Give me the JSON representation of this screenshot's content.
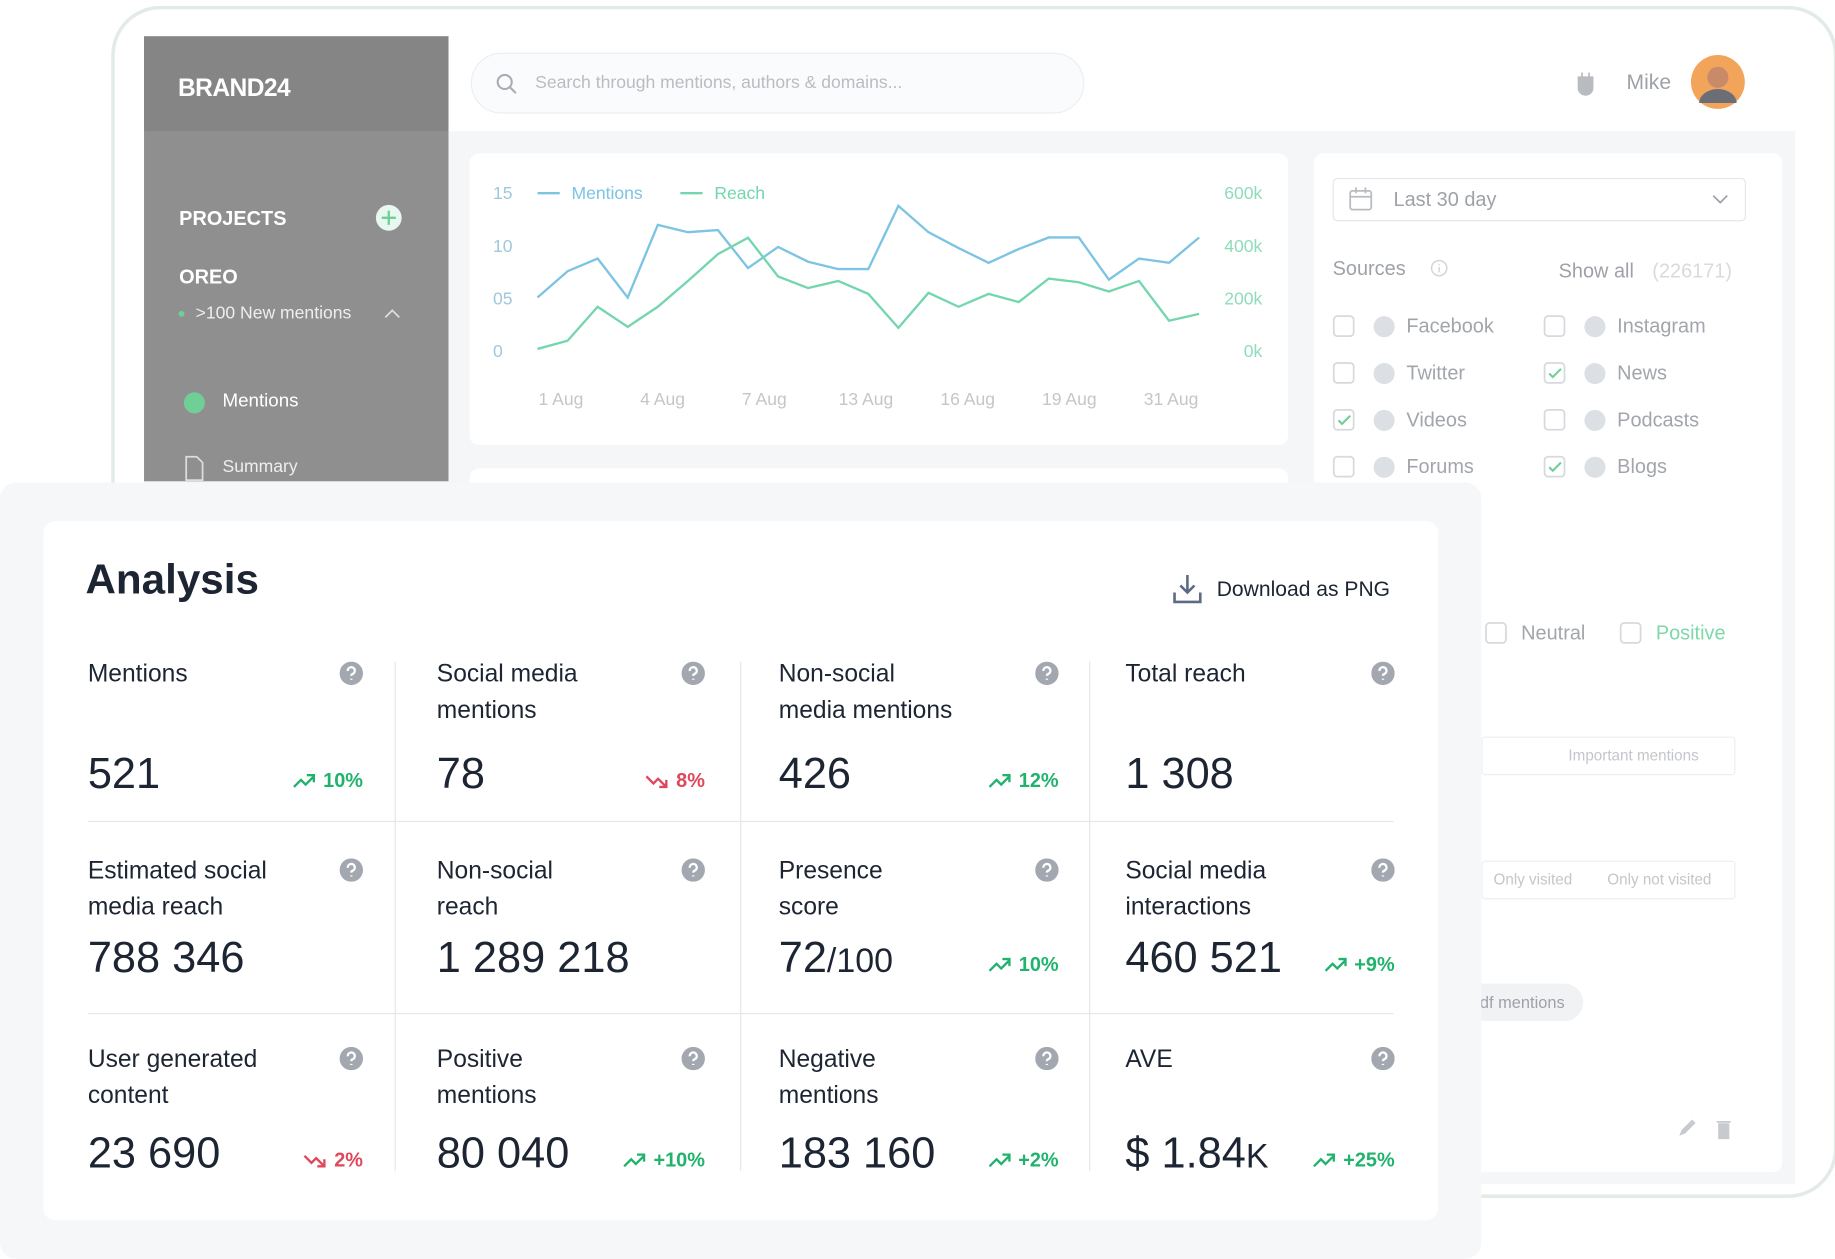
{
  "sidebar": {
    "brand": "BRAND24",
    "projects_heading": "PROJECTS",
    "project": {
      "name": "OREO",
      "status": ">100 New mentions"
    },
    "nav": [
      "Mentions",
      "Summary"
    ]
  },
  "header": {
    "search_placeholder": "Search through mentions, authors & domains...",
    "user": "Mike"
  },
  "chart": {
    "type": "line",
    "series": [
      {
        "name": "Mentions",
        "color": "#7cc4e2",
        "axis": "y",
        "values": [
          5.1,
          7.6,
          8.8,
          5.1,
          12,
          11.3,
          11.5,
          7.9,
          9.9,
          8.5,
          7.8,
          7.8,
          13.8,
          11.3,
          9.8,
          8.4,
          9.7,
          10.8,
          10.8,
          6.8,
          8.8,
          8.4,
          10.8
        ]
      },
      {
        "name": "Reach",
        "color": "#74d6ad",
        "axis": "y2",
        "values": [
          9000,
          40000,
          169000,
          93000,
          169000,
          267000,
          369000,
          431000,
          284000,
          240000,
          267000,
          218000,
          89000,
          222000,
          169000,
          218000,
          187000,
          276000,
          262000,
          227000,
          267000,
          116000,
          142000
        ]
      }
    ],
    "x_tick_labels": [
      "1 Aug",
      "4 Aug",
      "7 Aug",
      "13 Aug",
      "16 Aug",
      "19 Aug",
      "31 Aug"
    ],
    "ylim": [
      0,
      15
    ],
    "yticks": [
      0,
      {
        "value": 5,
        "label": "05"
      },
      10,
      15
    ],
    "y2lim": [
      0,
      600000
    ],
    "y2ticks": [
      {
        "value": 0,
        "label": "0k"
      },
      {
        "value": 200000,
        "label": "200k"
      },
      {
        "value": 400000,
        "label": "400k"
      },
      {
        "value": 600000,
        "label": "600k"
      }
    ]
  },
  "filters": {
    "date_range": "Last 30 day",
    "sources_heading": "Sources",
    "show_all": "Show all",
    "total": "(226171)",
    "sources": [
      {
        "name": "Facebook",
        "checked": false
      },
      {
        "name": "Instagram",
        "checked": false
      },
      {
        "name": "Twitter",
        "checked": false
      },
      {
        "name": "News",
        "checked": true
      },
      {
        "name": "Videos",
        "checked": true
      },
      {
        "name": "Podcasts",
        "checked": false
      },
      {
        "name": "Forums",
        "checked": false
      },
      {
        "name": "Blogs",
        "checked": true
      }
    ],
    "sentiment": [
      {
        "name": "Neutral",
        "checked": false
      },
      {
        "name": "Positive",
        "checked": false
      }
    ],
    "important": "Important mentions",
    "visited": [
      "Only visited",
      "Only not visited"
    ],
    "pdf": "pdf mentions"
  },
  "analysis": {
    "title": "Analysis",
    "download": "Download as PNG",
    "tiles": [
      {
        "label": [
          "Mentions"
        ],
        "value": "521",
        "change": "10%",
        "trend": "up"
      },
      {
        "label": [
          "Social media",
          "mentions"
        ],
        "value": "78",
        "change": "8%",
        "trend": "down"
      },
      {
        "label": [
          "Non-social",
          "media mentions"
        ],
        "value": "426",
        "change": "12%",
        "trend": "up"
      },
      {
        "label": [
          "Total reach"
        ],
        "value": "1 308"
      },
      {
        "label": [
          "Estimated social",
          "media reach"
        ],
        "value": "788 346"
      },
      {
        "label": [
          "Non-social",
          "reach"
        ],
        "value": "1 289 218"
      },
      {
        "label": [
          "Presence",
          "score"
        ],
        "value": "72",
        "value_suffix": "/100",
        "change": "10%",
        "trend": "up"
      },
      {
        "label": [
          "Social media",
          "interactions"
        ],
        "value": "460 521",
        "change": "+9%",
        "trend": "up"
      },
      {
        "label": [
          "User generated",
          "content"
        ],
        "value": "23 690",
        "change": "2%",
        "trend": "down"
      },
      {
        "label": [
          "Positive",
          "mentions"
        ],
        "value": "80 040",
        "change": "+10%",
        "trend": "up"
      },
      {
        "label": [
          "Negative",
          "mentions"
        ],
        "value": "183 160",
        "change": "+2%",
        "trend": "up"
      },
      {
        "label": [
          "AVE"
        ],
        "value": "$ 1.84",
        "value_suffix": "K",
        "change": "+25%",
        "trend": "up"
      }
    ]
  }
}
